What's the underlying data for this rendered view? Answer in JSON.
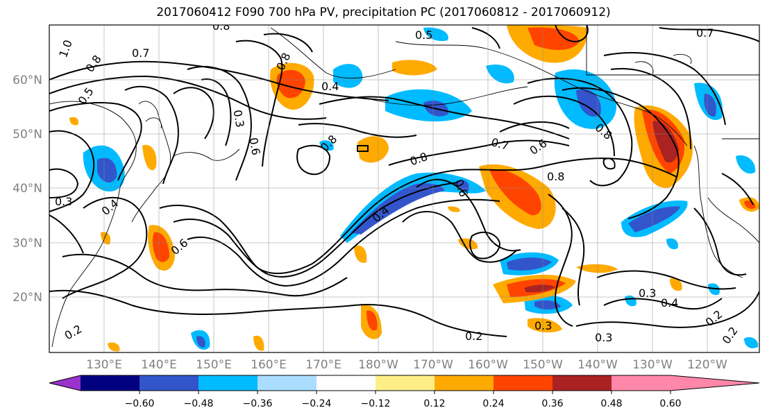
{
  "title": "2017060412 F090 700 hPa PV, precipitation PC (2017060812 - 2017060912)",
  "lat_labels": [
    "60°N",
    "50°N",
    "40°N",
    "30°N",
    "20°N"
  ],
  "lon_labels": [
    "130°E",
    "140°E",
    "150°E",
    "160°E",
    "170°E",
    "180°W",
    "170°W",
    "160°W",
    "150°W",
    "140°W",
    "130°W",
    "120°W"
  ],
  "colorbar": {
    "colors": [
      "#9933cc",
      "#000080",
      "#3355cc",
      "#00bbff",
      "#aaddff",
      "#ffffff",
      "#ffee88",
      "#ffaa00",
      "#ff4400",
      "#aa2222",
      "#ff88aa"
    ],
    "ticks": [
      "−0.60",
      "−0.48",
      "−0.36",
      "−0.24",
      "−0.12",
      "0.12",
      "0.24",
      "0.36",
      "0.48",
      "0.60"
    ]
  },
  "contour_labels": [
    {
      "text": "0.8"
    },
    {
      "text": "0.5"
    },
    {
      "text": "0.7"
    },
    {
      "text": "1.0"
    },
    {
      "text": "0.7"
    },
    {
      "text": "0.8"
    },
    {
      "text": "0.5"
    },
    {
      "text": "0.8"
    },
    {
      "text": "0.4"
    },
    {
      "text": "0.6"
    },
    {
      "text": "0.3"
    },
    {
      "text": "0.8"
    },
    {
      "text": "0.7"
    },
    {
      "text": "0.6"
    },
    {
      "text": "0.8"
    },
    {
      "text": "0.8"
    },
    {
      "text": "0.8"
    },
    {
      "text": "0.4"
    },
    {
      "text": "0.3"
    },
    {
      "text": "0.4"
    },
    {
      "text": "0.6"
    },
    {
      "text": "0.3"
    },
    {
      "text": "0.4"
    },
    {
      "text": "0.3"
    },
    {
      "text": "0.2"
    },
    {
      "text": "0.2"
    },
    {
      "text": "0.3"
    },
    {
      "text": "0.2"
    },
    {
      "text": "0.2"
    },
    {
      "text": "0.6"
    }
  ]
}
